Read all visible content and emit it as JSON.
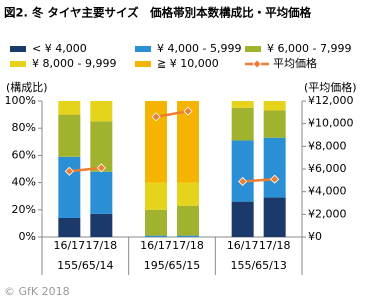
{
  "chart_data": {
    "type": "stacked-bar-line",
    "title": "図2. 冬 タイヤ主要サイズ　価格帯別本数構成比・平均価格",
    "y_label": "(構成比)",
    "y2_label": "(平均価格)",
    "categories": [
      "16/17",
      "17/18",
      "16/17",
      "17/18",
      "16/17",
      "17/18"
    ],
    "groups": [
      "155/65/14",
      "195/65/15",
      "155/65/13"
    ],
    "series": [
      {
        "name": "< ¥ 4,000",
        "color": "#1b3a6b",
        "values": [
          14,
          17,
          0,
          0,
          26,
          29
        ]
      },
      {
        "name": "¥ 4,000 - 5,999",
        "color": "#2b8fd6",
        "values": [
          45,
          31,
          1,
          1,
          45,
          44
        ]
      },
      {
        "name": "¥ 6,000 - 7,999",
        "color": "#a0b22e",
        "values": [
          31,
          37,
          19,
          22,
          24,
          20
        ]
      },
      {
        "name": "¥ 8,000 - 9,999",
        "color": "#e6d31c",
        "values": [
          10,
          15,
          20,
          17,
          5,
          7
        ]
      },
      {
        "name": "≧ ¥ 10,000",
        "color": "#f5b400",
        "values": [
          0,
          0,
          60,
          60,
          0,
          0
        ]
      },
      {
        "name": "平均価格",
        "color": "#ed7d31",
        "type": "line",
        "axis": "y2",
        "values": [
          5800,
          6100,
          10600,
          11100,
          4900,
          5100
        ]
      }
    ],
    "ylim": [
      0,
      100
    ],
    "yticks": [
      {
        "value": 0,
        "label": "0%"
      },
      {
        "value": 20,
        "label": "20%"
      },
      {
        "value": 40,
        "label": "40%"
      },
      {
        "value": 60,
        "label": "60%"
      },
      {
        "value": 80,
        "label": "80%"
      },
      {
        "value": 100,
        "label": "100%"
      }
    ],
    "y2lim": [
      0,
      12000
    ],
    "y2ticks": [
      {
        "value": 0,
        "label": "¥0"
      },
      {
        "value": 2000,
        "label": "¥2,000"
      },
      {
        "value": 4000,
        "label": "¥4,000"
      },
      {
        "value": 6000,
        "label": "¥6,000"
      },
      {
        "value": 8000,
        "label": "¥8,000"
      },
      {
        "value": 10000,
        "label": "¥10,000"
      },
      {
        "value": 12000,
        "label": "¥12,000"
      }
    ],
    "copyright": "© GfK 2018"
  }
}
